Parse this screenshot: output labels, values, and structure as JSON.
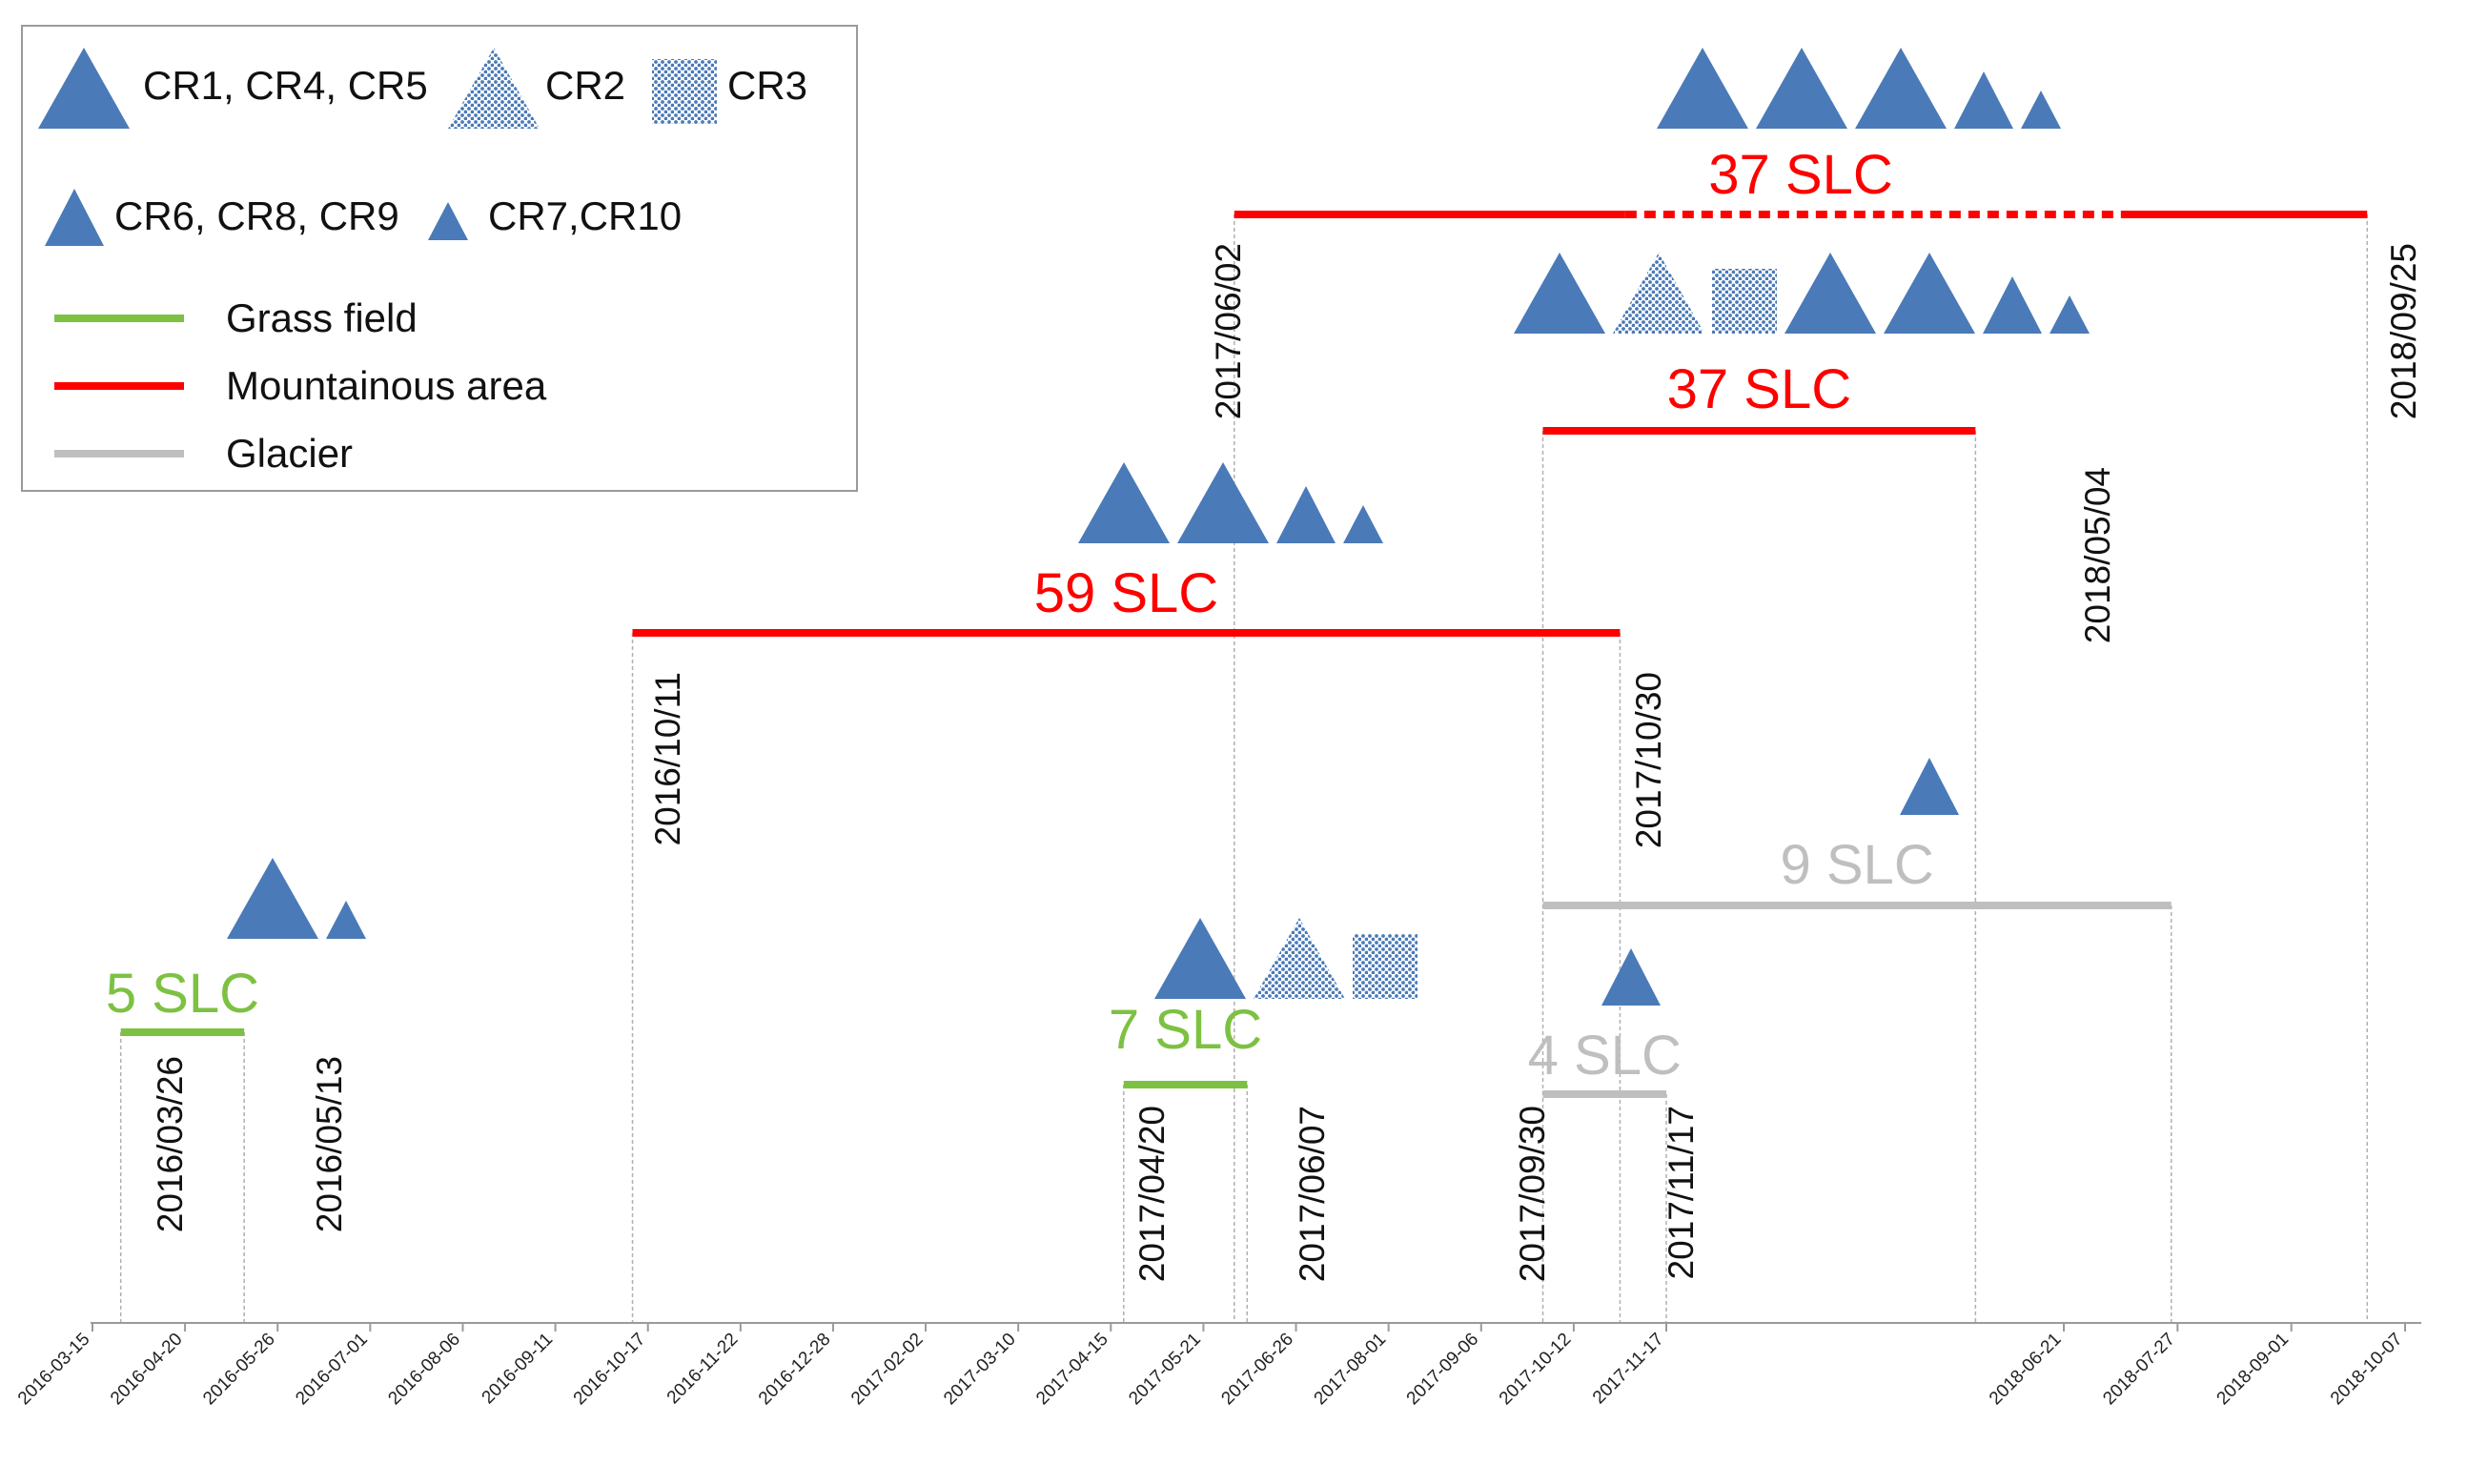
{
  "chart_data": {
    "type": "timeline",
    "title": "",
    "legend": {
      "position": "top-left",
      "markers": [
        {
          "label": "CR1, CR4, CR5",
          "marker": "triangle-large"
        },
        {
          "label": "CR2",
          "marker": "triangle-dotted"
        },
        {
          "label": "CR3",
          "marker": "square-dotted"
        },
        {
          "label": "CR6, CR8, CR9",
          "marker": "triangle-medium"
        },
        {
          "label": "CR7,CR10",
          "marker": "triangle-small"
        }
      ],
      "lines": [
        {
          "label": "Grass field",
          "color": "#7dc142"
        },
        {
          "label": "Mountainous area",
          "color": "#ff0000"
        },
        {
          "label": "Glacier",
          "color": "#bfbfbf"
        }
      ]
    },
    "x_axis": {
      "type": "date",
      "range": [
        "2016-03-15",
        "2018-10-07"
      ],
      "ticks": [
        "2016-03-15",
        "2016-04-20",
        "2016-05-26",
        "2016-07-01",
        "2016-08-06",
        "2016-09-11",
        "2016-10-17",
        "2016-11-22",
        "2016-12-28",
        "2017-02-02",
        "2017-03-10",
        "2017-04-15",
        "2017-05-21",
        "2017-06-26",
        "2017-08-01",
        "2017-09-06",
        "2017-10-12",
        "2017-11-17",
        "2018-06-21",
        "2018-07-27",
        "2018-09-01",
        "2018-10-07"
      ]
    },
    "series": [
      {
        "name": "Mountainous area",
        "label": "37 SLC",
        "start": "2017-06-02",
        "end": "2018-09-25",
        "start_label": "2017/06/02",
        "end_label": "2018/09/25",
        "color": "#ff0000",
        "dashed_segment": [
          "2017-11-01",
          "2018-07-10"
        ],
        "markers": [
          "triangle-large",
          "triangle-large",
          "triangle-large",
          "triangle-medium",
          "triangle-small"
        ]
      },
      {
        "name": "Mountainous area",
        "label": "37 SLC",
        "start": "2017-09-30",
        "end": "2018-05-04",
        "start_label": "",
        "end_label": "2018/05/04",
        "color": "#ff0000",
        "markers": [
          "triangle-large",
          "triangle-dotted",
          "square-dotted",
          "triangle-large",
          "triangle-large",
          "triangle-medium",
          "triangle-small"
        ]
      },
      {
        "name": "Mountainous area",
        "label": "59 SLC",
        "start": "2016-10-11",
        "end": "2017-10-30",
        "start_label": "2016/10/11",
        "end_label": "2017/10/30",
        "color": "#ff0000",
        "markers": [
          "triangle-large",
          "triangle-large",
          "triangle-medium",
          "triangle-small"
        ]
      },
      {
        "name": "Glacier",
        "label": "9 SLC",
        "start": "2017-09-30",
        "end": "2018-07-25",
        "start_label": "",
        "end_label": "",
        "color": "#bfbfbf",
        "markers": [
          "triangle-medium"
        ]
      },
      {
        "name": "Grass field",
        "label": "5 SLC",
        "start": "2016-03-26",
        "end": "2016-05-13",
        "start_label": "2016/03/26",
        "end_label": "2016/05/13",
        "color": "#7dc142",
        "markers": [
          "triangle-large",
          "triangle-small"
        ]
      },
      {
        "name": "Grass field",
        "label": "7 SLC",
        "start": "2017-04-20",
        "end": "2017-06-07",
        "start_label": "2017/04/20",
        "end_label": "2017/06/07",
        "color": "#7dc142",
        "markers": [
          "triangle-large",
          "triangle-dotted",
          "square-dotted"
        ]
      },
      {
        "name": "Glacier",
        "label": "4 SLC",
        "start": "2017-09-30",
        "end": "2017-11-17",
        "start_label": "2017/09/30",
        "end_label": "2017/11/17",
        "color": "#bfbfbf",
        "markers": [
          "triangle-medium"
        ]
      }
    ]
  }
}
